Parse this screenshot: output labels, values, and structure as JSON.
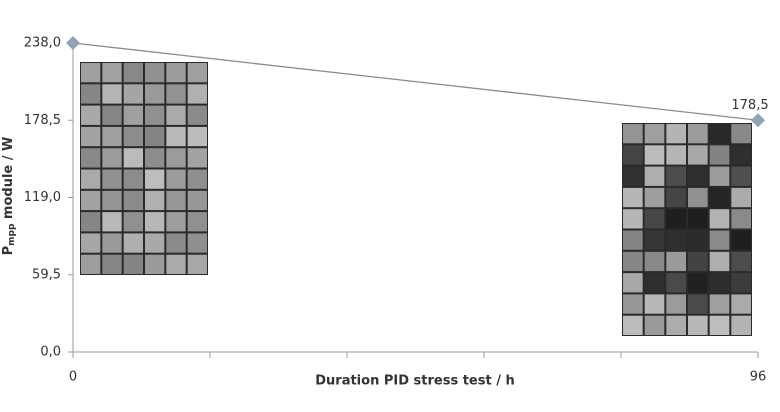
{
  "chart_data": {
    "type": "line",
    "x_label": "Duration PID stress test / h",
    "y_label": {
      "main": "P",
      "sub": "mpp",
      "rest": " module / W"
    },
    "x": [
      0,
      96
    ],
    "series": [
      {
        "color": "#8fa3b8",
        "line_color": "#8c8c8c",
        "values": [
          238.0,
          178.5
        ],
        "value_labels": [
          null,
          "178,5"
        ]
      }
    ],
    "xlim": [
      0,
      96
    ],
    "xticks": [
      0,
      96
    ],
    "xminorticks": [
      19.2,
      38.4,
      57.6,
      76.8
    ],
    "ylim": [
      0,
      238.0
    ],
    "yticks": [
      {
        "value": 0,
        "label": "0,0"
      },
      {
        "value": 59.5,
        "label": "59,5"
      },
      {
        "value": 119.0,
        "label": "119,0"
      },
      {
        "value": 178.5,
        "label": "178,5"
      },
      {
        "value": 238.0,
        "label": "238,0"
      }
    ]
  }
}
